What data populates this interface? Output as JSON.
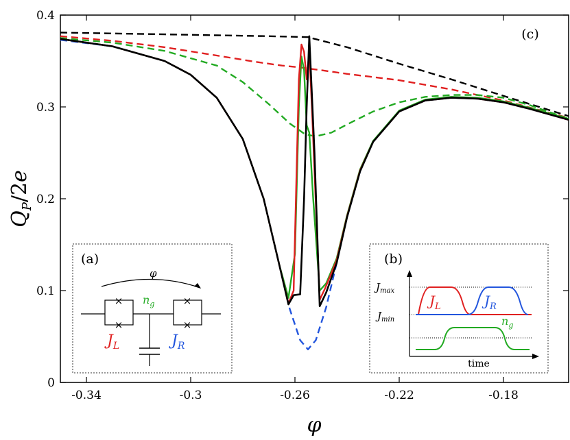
{
  "chart_data": {
    "type": "line",
    "xlabel": "φ",
    "ylabel": "Q_P/2e",
    "xlim": [
      -0.35,
      -0.155
    ],
    "ylim": [
      0,
      0.4
    ],
    "xticks": [
      -0.34,
      -0.3,
      -0.26,
      -0.22,
      -0.18
    ],
    "xtick_labels": [
      "-0.34",
      "-0.3",
      "-0.26",
      "-0.22",
      "-0.18"
    ],
    "yticks": [
      0,
      0.1,
      0.2,
      0.3,
      0.4
    ],
    "ytick_labels": [
      "0",
      "0.1",
      "0.2",
      "0.3",
      "0.4"
    ],
    "panel_label": "(c)",
    "series": [
      {
        "color": "#000000",
        "dash": "dashed",
        "x": [
          -0.35,
          -0.33,
          -0.31,
          -0.29,
          -0.27,
          -0.255,
          -0.24,
          -0.22,
          -0.2,
          -0.18,
          -0.155
        ],
        "y": [
          0.381,
          0.38,
          0.379,
          0.378,
          0.377,
          0.376,
          0.365,
          0.347,
          0.33,
          0.312,
          0.29
        ]
      },
      {
        "color": "#e02020",
        "dash": "dashed",
        "x": [
          -0.35,
          -0.33,
          -0.31,
          -0.29,
          -0.275,
          -0.265,
          -0.258,
          -0.25,
          -0.24,
          -0.22,
          -0.2,
          -0.18,
          -0.155
        ],
        "y": [
          0.377,
          0.372,
          0.365,
          0.356,
          0.349,
          0.345,
          0.343,
          0.34,
          0.336,
          0.329,
          0.319,
          0.307,
          0.288
        ]
      },
      {
        "color": "#22aa22",
        "dash": "dashed",
        "x": [
          -0.35,
          -0.33,
          -0.31,
          -0.29,
          -0.28,
          -0.27,
          -0.262,
          -0.256,
          -0.252,
          -0.246,
          -0.24,
          -0.23,
          -0.22,
          -0.21,
          -0.2,
          -0.19,
          -0.18,
          -0.17,
          -0.155
        ],
        "y": [
          0.375,
          0.37,
          0.361,
          0.345,
          0.327,
          0.303,
          0.282,
          0.27,
          0.268,
          0.272,
          0.281,
          0.295,
          0.305,
          0.311,
          0.313,
          0.313,
          0.31,
          0.302,
          0.287
        ]
      },
      {
        "color": "#2255dd",
        "dash": "dashed",
        "x": [
          -0.35,
          -0.33,
          -0.31,
          -0.3,
          -0.29,
          -0.28,
          -0.272,
          -0.266,
          -0.262,
          -0.258,
          -0.255,
          -0.252,
          -0.248,
          -0.244,
          -0.24,
          -0.235,
          -0.23,
          -0.22,
          -0.21,
          -0.2,
          -0.19,
          -0.18,
          -0.17,
          -0.155
        ],
        "y": [
          0.373,
          0.366,
          0.35,
          0.335,
          0.31,
          0.265,
          0.2,
          0.128,
          0.08,
          0.046,
          0.036,
          0.046,
          0.082,
          0.13,
          0.18,
          0.23,
          0.262,
          0.295,
          0.307,
          0.31,
          0.309,
          0.305,
          0.298,
          0.286
        ]
      },
      {
        "color": "#22aa22",
        "dash": "solid",
        "x": [
          -0.35,
          -0.33,
          -0.31,
          -0.3,
          -0.29,
          -0.28,
          -0.272,
          -0.266,
          -0.2625,
          -0.26,
          -0.2585,
          -0.2575,
          -0.2565,
          -0.2555,
          -0.2545,
          -0.253,
          -0.2505,
          -0.248,
          -0.244,
          -0.24,
          -0.235,
          -0.23,
          -0.22,
          -0.21,
          -0.2,
          -0.19,
          -0.18,
          -0.17,
          -0.155
        ],
        "y": [
          0.374,
          0.366,
          0.35,
          0.335,
          0.31,
          0.265,
          0.2,
          0.128,
          0.092,
          0.14,
          0.3,
          0.355,
          0.34,
          0.28,
          0.272,
          0.2,
          0.1,
          0.108,
          0.135,
          0.182,
          0.232,
          0.263,
          0.296,
          0.308,
          0.311,
          0.31,
          0.306,
          0.299,
          0.287
        ]
      },
      {
        "color": "#e02020",
        "dash": "solid",
        "x": [
          -0.35,
          -0.33,
          -0.31,
          -0.3,
          -0.29,
          -0.28,
          -0.272,
          -0.266,
          -0.2625,
          -0.2605,
          -0.2585,
          -0.2575,
          -0.2565,
          -0.2555,
          -0.2545,
          -0.2535,
          -0.2505,
          -0.2485,
          -0.244,
          -0.24,
          -0.235,
          -0.23,
          -0.22,
          -0.21,
          -0.2,
          -0.19,
          -0.18,
          -0.17,
          -0.155
        ],
        "y": [
          0.374,
          0.366,
          0.35,
          0.335,
          0.31,
          0.265,
          0.2,
          0.128,
          0.086,
          0.1,
          0.33,
          0.368,
          0.36,
          0.33,
          0.36,
          0.3,
          0.09,
          0.102,
          0.133,
          0.181,
          0.231,
          0.262,
          0.295,
          0.307,
          0.31,
          0.309,
          0.305,
          0.298,
          0.286
        ]
      },
      {
        "color": "#000000",
        "dash": "solid",
        "x": [
          -0.35,
          -0.33,
          -0.31,
          -0.3,
          -0.29,
          -0.28,
          -0.272,
          -0.266,
          -0.2625,
          -0.2605,
          -0.258,
          -0.2565,
          -0.2555,
          -0.2545,
          -0.2525,
          -0.2505,
          -0.248,
          -0.244,
          -0.24,
          -0.235,
          -0.23,
          -0.22,
          -0.21,
          -0.2,
          -0.19,
          -0.18,
          -0.17,
          -0.155
        ],
        "y": [
          0.374,
          0.366,
          0.35,
          0.335,
          0.31,
          0.265,
          0.2,
          0.128,
          0.085,
          0.095,
          0.096,
          0.2,
          0.3,
          0.377,
          0.25,
          0.083,
          0.098,
          0.13,
          0.18,
          0.23,
          0.262,
          0.295,
          0.307,
          0.31,
          0.309,
          0.305,
          0.298,
          0.286
        ]
      }
    ],
    "insets": {
      "a": {
        "label": "(a)",
        "phi": "φ",
        "ng": "n",
        "ng_sub": "g",
        "jl": "J",
        "jl_sub": "L",
        "jr": "J",
        "jr_sub": "R"
      },
      "b": {
        "label": "(b)",
        "jmax": "J",
        "jmax_sub": "max",
        "jmin": "J",
        "jmin_sub": "min",
        "jl": "J",
        "jl_sub": "L",
        "jr": "J",
        "jr_sub": "R",
        "ng": "n",
        "ng_sub": "g",
        "time": "time"
      }
    },
    "colors": {
      "red": "#e02020",
      "green": "#22aa22",
      "blue": "#2255dd",
      "black": "#000000"
    }
  }
}
